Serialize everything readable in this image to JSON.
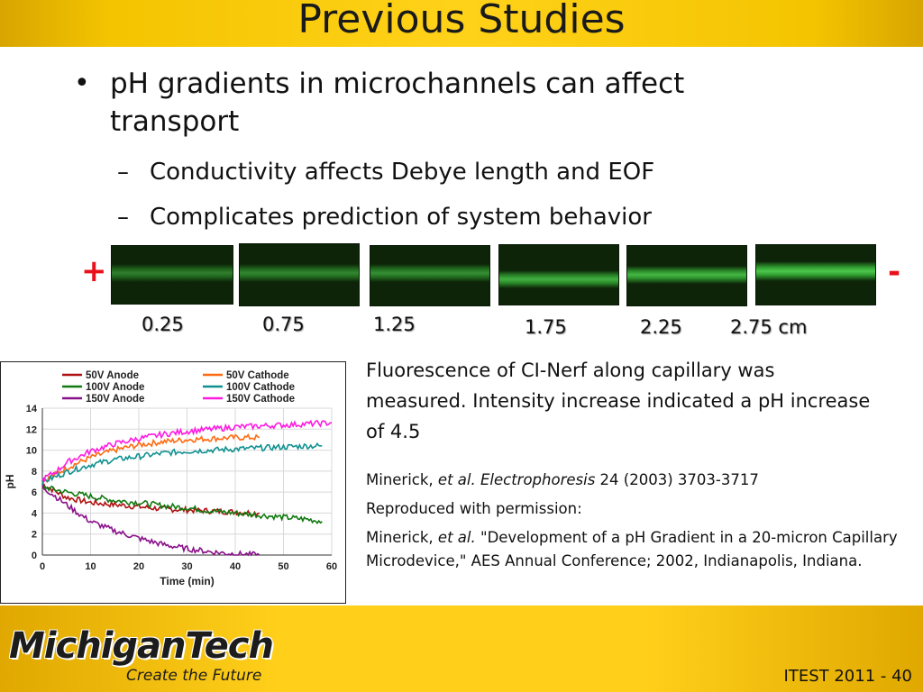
{
  "header": {
    "title": "Previous Studies"
  },
  "bullets": {
    "main": "pH gradients in microchannels can affect transport",
    "sub": [
      "Conductivity affects Debye length and EOF",
      "Complicates prediction of system behavior"
    ]
  },
  "image_strip": {
    "plus_label": "+",
    "minus_label": "-",
    "positions": [
      "0.25",
      "0.75",
      "1.25",
      "1.75",
      "2.25",
      "2.75 cm"
    ],
    "channel_color": "#3cc43c"
  },
  "caption": {
    "text": "Fluorescence of CI-Nerf along capillary was measured. Intensity increase indicated a pH increase of 4.5"
  },
  "references": {
    "ref1_author": "Minerick, ",
    "ref1_etal": "et al.",
    "ref1_journal": " Electrophoresis",
    "ref1_rest": " 24 (2003) 3703-3717",
    "permission": "Reproduced with permission:",
    "ref2_author": "Minerick, ",
    "ref2_etal": "et al.",
    "ref2_rest": " \"Development of a pH Gradient in a 20-micron Capillary Microdevice,\" AES Annual Conference; 2002, Indianapolis, Indiana."
  },
  "footer": {
    "logo_text": "MichiganTech",
    "logo_tagline": "Create the Future",
    "slide_number": "ITEST 2011 - 40"
  },
  "chart_data": {
    "type": "line",
    "xlabel": "Time (min)",
    "ylabel": "pH",
    "xlim": [
      0,
      60
    ],
    "ylim": [
      0,
      14
    ],
    "xticks": [
      0,
      10,
      20,
      30,
      40,
      50,
      60
    ],
    "yticks": [
      0,
      2,
      4,
      6,
      8,
      10,
      12,
      14
    ],
    "legend_position": "top",
    "series": [
      {
        "name": "50V Anode",
        "color": "#b01010",
        "x": [
          0,
          3,
          5,
          10,
          15,
          20,
          25,
          30,
          35,
          40,
          45
        ],
        "y": [
          6.8,
          6.0,
          5.5,
          5.0,
          4.8,
          4.6,
          4.4,
          4.3,
          4.2,
          4.1,
          4.0
        ]
      },
      {
        "name": "50V Cathode",
        "color": "#ff6a10",
        "x": [
          0,
          2,
          5,
          10,
          15,
          20,
          25,
          30,
          35,
          40,
          45
        ],
        "y": [
          7.0,
          7.5,
          8.3,
          9.3,
          10.0,
          10.5,
          10.8,
          11.0,
          11.1,
          11.2,
          11.2
        ]
      },
      {
        "name": "100V Anode",
        "color": "#107a10",
        "x": [
          0,
          5,
          10,
          15,
          20,
          25,
          30,
          35,
          40,
          45,
          50,
          55,
          58
        ],
        "y": [
          6.5,
          6.0,
          5.6,
          5.2,
          5.0,
          4.7,
          4.5,
          4.2,
          4.0,
          3.8,
          3.6,
          3.4,
          3.2
        ]
      },
      {
        "name": "100V Cathode",
        "color": "#109090",
        "x": [
          0,
          3,
          5,
          10,
          15,
          20,
          25,
          30,
          35,
          40,
          45,
          50,
          55,
          58
        ],
        "y": [
          7.0,
          7.5,
          7.9,
          8.6,
          9.1,
          9.4,
          9.7,
          9.9,
          10.0,
          10.1,
          10.2,
          10.3,
          10.4,
          10.4
        ]
      },
      {
        "name": "150V Anode",
        "color": "#8a108a",
        "x": [
          0,
          3,
          5,
          8,
          10,
          15,
          20,
          25,
          30,
          35,
          40,
          45
        ],
        "y": [
          6.5,
          5.5,
          4.8,
          3.8,
          3.2,
          2.3,
          1.6,
          1.0,
          0.6,
          0.3,
          0.1,
          0.0
        ]
      },
      {
        "name": "150V Cathode",
        "color": "#ff1ae0",
        "x": [
          0,
          3,
          5,
          10,
          15,
          20,
          25,
          30,
          35,
          40,
          45,
          50,
          55,
          60
        ],
        "y": [
          7.2,
          8.0,
          8.8,
          9.9,
          10.6,
          11.1,
          11.5,
          11.8,
          12.0,
          12.2,
          12.3,
          12.4,
          12.5,
          12.6
        ]
      }
    ]
  }
}
